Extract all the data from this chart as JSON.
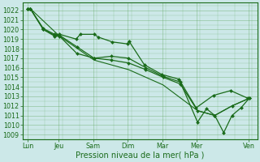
{
  "xlabel": "Pression niveau de la mer( hPa )",
  "bg_color": "#cce8e8",
  "grid_color": "#66aa66",
  "line_color": "#1a6b1a",
  "marker_color": "#1a6b1a",
  "ylim": [
    1008.5,
    1022.8
  ],
  "yticks": [
    1009,
    1010,
    1011,
    1012,
    1013,
    1014,
    1015,
    1016,
    1017,
    1018,
    1019,
    1020,
    1021,
    1022
  ],
  "xlim": [
    -0.15,
    6.65
  ],
  "x_day_labels": [
    "Lun",
    "Jeu",
    "Sam",
    "Dim",
    "Mar",
    "Mer",
    "Ven"
  ],
  "x_day_positions": [
    0.0,
    0.9,
    1.9,
    2.9,
    3.9,
    4.9,
    6.4
  ],
  "lines": [
    {
      "x": [
        0.0,
        0.07,
        0.45,
        0.78,
        0.92,
        1.4,
        1.52,
        1.92,
        2.05,
        2.45,
        2.88,
        2.93,
        3.38,
        3.88,
        4.38,
        4.88,
        5.38,
        5.88,
        6.38
      ],
      "y": [
        1022.2,
        1022.2,
        1020.1,
        1019.5,
        1019.5,
        1019.0,
        1019.5,
        1019.5,
        1019.2,
        1018.7,
        1018.5,
        1018.8,
        1016.3,
        1015.3,
        1014.8,
        1011.8,
        1013.1,
        1013.6,
        1012.8
      ],
      "marker": "D",
      "markersize": 2.0,
      "linewidth": 0.9
    },
    {
      "x": [
        0.0,
        0.07,
        0.45,
        0.78,
        0.92,
        1.42,
        1.92,
        2.42,
        2.92,
        3.42,
        3.92,
        4.42,
        4.92,
        5.18,
        5.42,
        5.68,
        5.92,
        6.18,
        6.42
      ],
      "y": [
        1022.2,
        1022.2,
        1020.0,
        1019.4,
        1019.4,
        1018.2,
        1017.0,
        1017.2,
        1017.0,
        1016.0,
        1015.1,
        1014.5,
        1010.3,
        1011.7,
        1011.0,
        1009.2,
        1011.0,
        1011.8,
        1012.8
      ],
      "marker": "D",
      "markersize": 2.0,
      "linewidth": 0.9
    },
    {
      "x": [
        0.0,
        0.07,
        0.45,
        0.78,
        0.92,
        1.42,
        1.92,
        2.42,
        2.92,
        3.42,
        3.92,
        4.42,
        4.92,
        5.42,
        5.92,
        6.42
      ],
      "y": [
        1022.2,
        1022.2,
        1020.0,
        1019.3,
        1019.3,
        1017.5,
        1017.0,
        1016.8,
        1016.5,
        1015.8,
        1015.0,
        1014.3,
        1011.5,
        1011.0,
        1012.0,
        1012.8
      ],
      "marker": "D",
      "markersize": 2.0,
      "linewidth": 0.9
    },
    {
      "x": [
        0.0,
        0.07,
        0.92,
        1.92,
        2.92,
        3.92,
        4.92,
        5.42,
        5.92,
        6.42
      ],
      "y": [
        1022.2,
        1022.2,
        1019.3,
        1016.8,
        1015.8,
        1014.2,
        1011.5,
        1011.0,
        1012.0,
        1012.8
      ],
      "marker": "None",
      "markersize": 0,
      "linewidth": 0.8
    }
  ],
  "spine_color": "#1a6b1a",
  "tick_color": "#1a6b1a",
  "label_fontsize": 7.0,
  "tick_fontsize": 5.8
}
